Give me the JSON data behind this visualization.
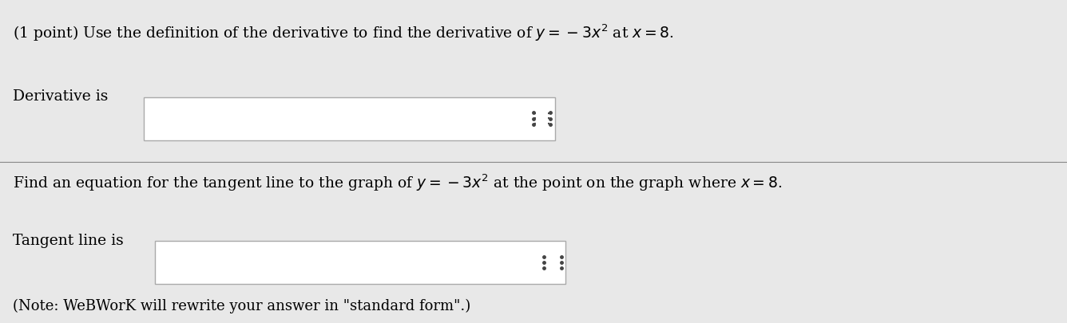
{
  "bg_color": "#e8e8e8",
  "text_color": "#000000",
  "line1": "(1 point) Use the definition of the derivative to find the derivative of $y = -3x^2$ at $x = 8$.",
  "label_derivative": "Derivative is",
  "line2": "Find an equation for the tangent line to the graph of $y = -3x^2$ at the point on the graph where $x = 8$.",
  "label_tangent": "Tangent line is",
  "note": "(Note: WeBWorK will rewrite your answer in \"standard form\".)",
  "box_color": "white",
  "box_border": "#aaaaaa",
  "divider_color": "#888888",
  "font_size_main": 13.5,
  "font_size_label": 13.5,
  "font_size_note": 13.0
}
